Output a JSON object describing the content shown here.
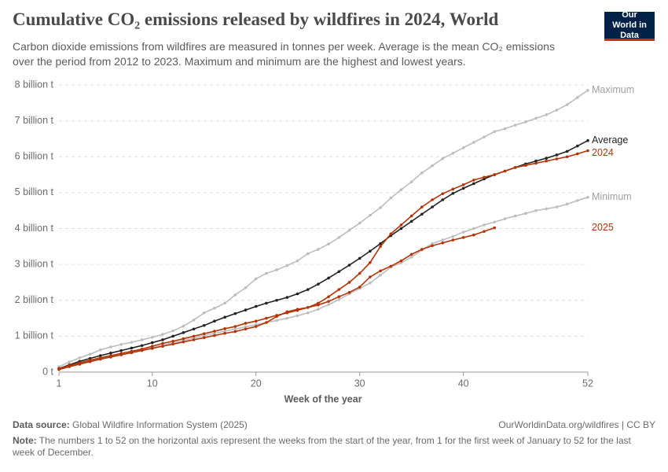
{
  "chart_data": {
    "type": "line",
    "title": "Cumulative CO₂ emissions released by wildfires in 2024, World",
    "subtitle": "Carbon dioxide emissions from wildfires are measured in tonnes per week. Average is the mean CO₂ emissions over the period from 2012 to 2023. Maximum and minimum are the highest and lowest years.",
    "logo": "Our World in Data",
    "x_label": "Week of the year",
    "source_label": "Data source:",
    "source": "Global Wildfire Information System (2025)",
    "url": "OurWorldinData.org/wildfires | CC BY",
    "note_label": "Note:",
    "note": "The numbers 1 to 52 on the horizontal axis represent the weeks from the start of the year, from 1 for the first week of January to 52 for the last week of December.",
    "x": [
      1,
      2,
      3,
      4,
      5,
      6,
      7,
      8,
      9,
      10,
      11,
      12,
      13,
      14,
      15,
      16,
      17,
      18,
      19,
      20,
      21,
      22,
      23,
      24,
      25,
      26,
      27,
      28,
      29,
      30,
      31,
      32,
      33,
      34,
      35,
      36,
      37,
      38,
      39,
      40,
      41,
      42,
      43,
      44,
      45,
      46,
      47,
      48,
      49,
      50,
      51,
      52
    ],
    "xlim": [
      1,
      52
    ],
    "xticks": [
      1,
      10,
      20,
      30,
      40,
      52
    ],
    "ylim": [
      0,
      8
    ],
    "yticks": [
      {
        "value": 0,
        "label": "0 t"
      },
      {
        "value": 1,
        "label": "1 billion t"
      },
      {
        "value": 2,
        "label": "2 billion t"
      },
      {
        "value": 3,
        "label": "3 billion t"
      },
      {
        "value": 4,
        "label": "4 billion t"
      },
      {
        "value": 5,
        "label": "5 billion t"
      },
      {
        "value": 6,
        "label": "6 billion t"
      },
      {
        "value": 7,
        "label": "7 billion t"
      },
      {
        "value": 8,
        "label": "8 billion t"
      }
    ],
    "grid": true,
    "series": [
      {
        "name": "Maximum",
        "color": "#bdbdbd",
        "values": [
          0.15,
          0.28,
          0.4,
          0.5,
          0.62,
          0.7,
          0.77,
          0.83,
          0.9,
          0.97,
          1.05,
          1.15,
          1.28,
          1.45,
          1.65,
          1.78,
          1.92,
          2.15,
          2.35,
          2.6,
          2.75,
          2.85,
          2.97,
          3.1,
          3.3,
          3.42,
          3.57,
          3.75,
          3.95,
          4.15,
          4.37,
          4.58,
          4.85,
          5.08,
          5.3,
          5.55,
          5.75,
          5.95,
          6.1,
          6.25,
          6.4,
          6.55,
          6.7,
          6.78,
          6.88,
          6.97,
          7.07,
          7.17,
          7.3,
          7.45,
          7.65,
          7.85
        ]
      },
      {
        "name": "Minimum",
        "color": "#bdbdbd",
        "values": [
          0.1,
          0.17,
          0.24,
          0.31,
          0.38,
          0.44,
          0.5,
          0.56,
          0.62,
          0.68,
          0.75,
          0.82,
          0.88,
          0.95,
          1.02,
          1.08,
          1.14,
          1.2,
          1.26,
          1.32,
          1.38,
          1.44,
          1.5,
          1.57,
          1.65,
          1.75,
          1.88,
          2.02,
          2.18,
          2.33,
          2.48,
          2.7,
          2.92,
          3.05,
          3.2,
          3.4,
          3.58,
          3.68,
          3.78,
          3.9,
          4.0,
          4.1,
          4.18,
          4.27,
          4.35,
          4.42,
          4.5,
          4.55,
          4.6,
          4.68,
          4.78,
          4.87
        ]
      },
      {
        "name": "Average",
        "color": "#222222",
        "values": [
          0.1,
          0.2,
          0.3,
          0.38,
          0.46,
          0.53,
          0.6,
          0.67,
          0.74,
          0.82,
          0.9,
          1.0,
          1.1,
          1.2,
          1.3,
          1.42,
          1.53,
          1.63,
          1.73,
          1.83,
          1.92,
          2.0,
          2.08,
          2.18,
          2.3,
          2.45,
          2.62,
          2.8,
          2.98,
          3.17,
          3.37,
          3.58,
          3.8,
          4.0,
          4.2,
          4.4,
          4.6,
          4.8,
          4.98,
          5.12,
          5.25,
          5.38,
          5.5,
          5.6,
          5.7,
          5.8,
          5.88,
          5.96,
          6.05,
          6.15,
          6.3,
          6.45
        ]
      },
      {
        "name": "2024",
        "color": "#b13507",
        "values": [
          0.1,
          0.18,
          0.26,
          0.33,
          0.4,
          0.46,
          0.52,
          0.58,
          0.64,
          0.72,
          0.8,
          0.86,
          0.93,
          1.0,
          1.07,
          1.14,
          1.21,
          1.27,
          1.36,
          1.42,
          1.5,
          1.58,
          1.65,
          1.72,
          1.8,
          1.92,
          2.1,
          2.3,
          2.5,
          2.75,
          3.05,
          3.5,
          3.85,
          4.1,
          4.35,
          4.6,
          4.8,
          4.97,
          5.1,
          5.22,
          5.35,
          5.43,
          5.5,
          5.6,
          5.7,
          5.76,
          5.82,
          5.88,
          5.94,
          6.0,
          6.08,
          6.17
        ]
      },
      {
        "name": "2025",
        "color": "#b13507",
        "values": [
          0.07,
          0.15,
          0.22,
          0.29,
          0.36,
          0.42,
          0.48,
          0.54,
          0.6,
          0.66,
          0.72,
          0.78,
          0.84,
          0.9,
          0.96,
          1.02,
          1.08,
          1.13,
          1.2,
          1.27,
          1.38,
          1.55,
          1.68,
          1.75,
          1.8,
          1.87,
          1.97,
          2.1,
          2.22,
          2.37,
          2.65,
          2.82,
          2.95,
          3.1,
          3.28,
          3.42,
          3.52,
          3.6,
          3.68,
          3.75,
          3.82,
          3.92,
          4.02,
          null,
          null,
          null,
          null,
          null,
          null,
          null,
          null,
          null
        ]
      }
    ]
  }
}
